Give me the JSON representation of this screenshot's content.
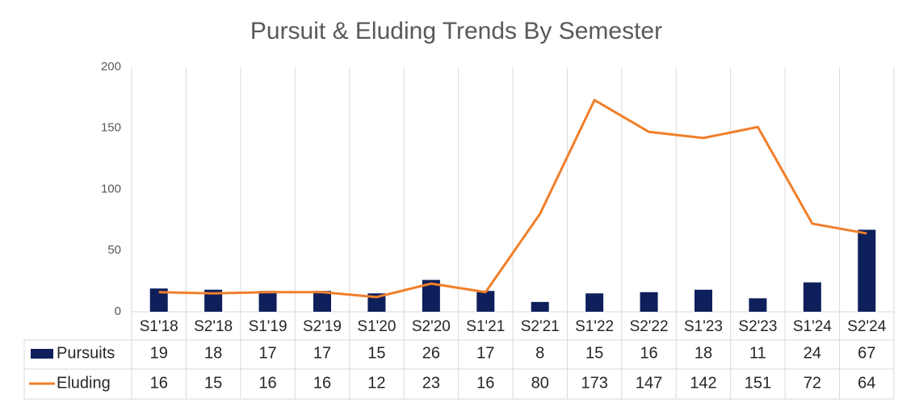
{
  "chart_data": {
    "type": "bar",
    "title": "Pursuit & Eluding Trends By Semester",
    "categories": [
      "S1'18",
      "S2'18",
      "S1'19",
      "S2'19",
      "S1'20",
      "S2'20",
      "S1'21",
      "S2'21",
      "S1'22",
      "S2'22",
      "S1'23",
      "S2'23",
      "S1'24",
      "S2'24"
    ],
    "series": [
      {
        "name": "Pursuits",
        "type": "bar",
        "color": "#0e1f5b",
        "values": [
          19,
          18,
          17,
          17,
          15,
          26,
          17,
          8,
          15,
          16,
          18,
          11,
          24,
          67
        ]
      },
      {
        "name": "Eluding",
        "type": "line",
        "color": "#f07f2a",
        "values": [
          16,
          15,
          16,
          16,
          12,
          23,
          16,
          80,
          173,
          147,
          142,
          151,
          72,
          64
        ]
      }
    ],
    "ylim": [
      0,
      200
    ],
    "yticks": [
      0,
      50,
      100,
      150,
      200
    ],
    "grid": true,
    "data_table": true
  }
}
